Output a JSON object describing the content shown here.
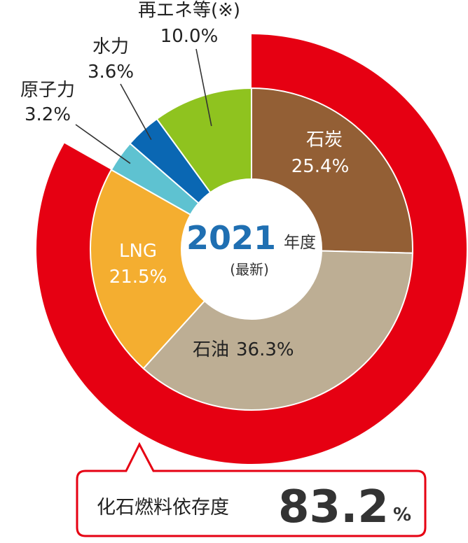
{
  "chart_data": {
    "type": "pie",
    "center_label": {
      "year": "2021",
      "year_suffix": "年度",
      "note": "(最新)"
    },
    "slices": [
      {
        "label": "石炭",
        "value": 25.4,
        "value_text": "25.4%",
        "color": "#935f35"
      },
      {
        "label": "石油",
        "value": 36.3,
        "value_text": "36.3%",
        "color": "#bdae94"
      },
      {
        "label": "LNG",
        "value": 21.5,
        "value_text": "21.5%",
        "color": "#f4ae30"
      },
      {
        "label": "原子力",
        "value": 3.2,
        "value_text": "3.2%",
        "color": "#5ec2d1"
      },
      {
        "label": "水力",
        "value": 3.6,
        "value_text": "3.6%",
        "color": "#0a67b3"
      },
      {
        "label": "再エネ等(※)",
        "value": 10.0,
        "value_text": "10.0%",
        "color": "#8fc31f"
      }
    ],
    "outer_ring": {
      "label": "化石燃料依存度",
      "value": 83.2,
      "value_text": "83.2",
      "unit": "%",
      "color": "#e60012"
    }
  }
}
